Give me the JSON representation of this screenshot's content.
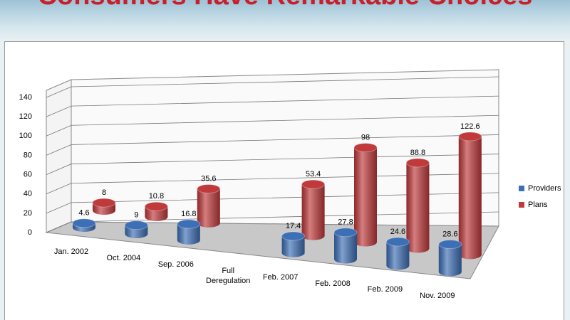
{
  "chart_data": {
    "type": "cylinder-bar-3d",
    "title": "Consumers Have Remarkable Choices",
    "categories": [
      "Jan. 2002",
      "Oct. 2004",
      "Sep. 2006",
      "Full Deregulation",
      "Feb. 2007",
      "Feb. 2008",
      "Feb. 2009",
      "Nov. 2009"
    ],
    "series": [
      {
        "name": "Providers",
        "color": "#3d6fb6",
        "values": [
          4.6,
          9,
          16.8,
          null,
          17.4,
          27.8,
          24.6,
          28.6
        ]
      },
      {
        "name": "Plans",
        "color": "#c0393b",
        "values": [
          8,
          10.8,
          35.6,
          null,
          53.4,
          98,
          88.8,
          122.6
        ]
      }
    ],
    "ylim": [
      0,
      140
    ],
    "yticks": [
      0,
      20,
      40,
      60,
      80,
      100,
      120,
      140
    ],
    "grid": true,
    "legend": "right"
  }
}
